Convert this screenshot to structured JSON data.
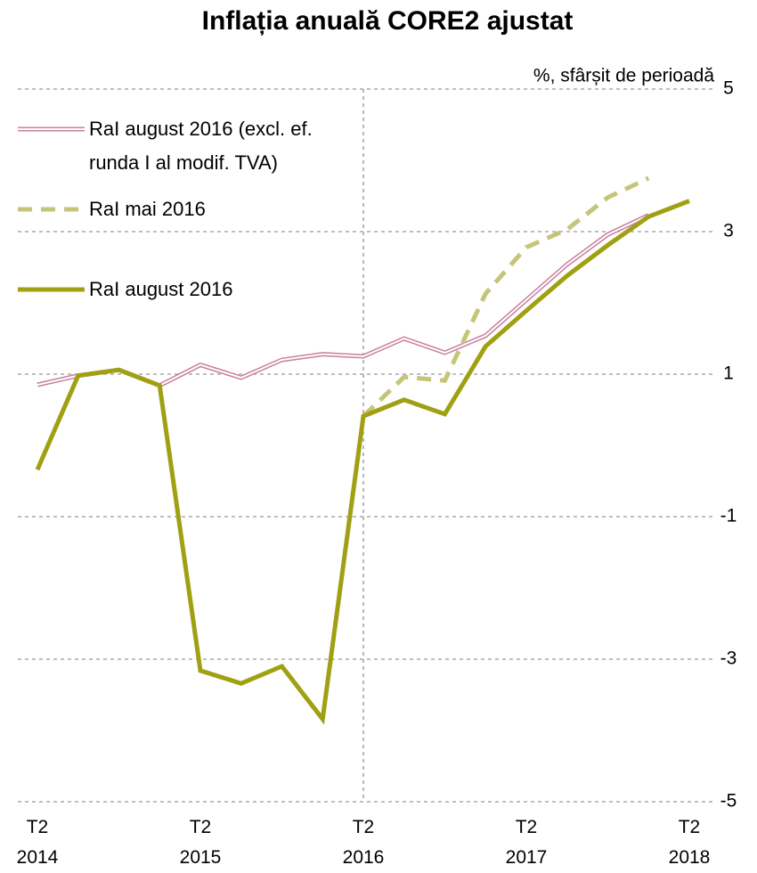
{
  "chart_data": {
    "type": "line",
    "title": "Inflația anuală CORE2 ajustat",
    "y_label": "%, sfârșit de perioadă",
    "categories": [
      "T2\n2014",
      null,
      null,
      null,
      "T2\n2015",
      null,
      null,
      null,
      "T2\n2016",
      null,
      null,
      null,
      "T2\n2017",
      null,
      null,
      null,
      "T2\n2018"
    ],
    "series": [
      {
        "name": "RaI august 2016 (excl. ef. runda I al modif. TVA)",
        "color": "#c87fa0",
        "style": "double",
        "values": [
          0.85,
          0.98,
          1.06,
          0.84,
          1.13,
          0.95,
          1.2,
          1.28,
          1.25,
          1.5,
          1.3,
          1.54,
          2.04,
          2.54,
          2.96,
          3.23,
          null
        ]
      },
      {
        "name": "RaI mai 2016",
        "color": "#c5c57a",
        "style": "dashed",
        "values": [
          null,
          null,
          null,
          null,
          null,
          null,
          null,
          null,
          0.41,
          0.96,
          0.91,
          2.13,
          2.78,
          3.03,
          3.48,
          3.75,
          null
        ]
      },
      {
        "name": "RaI august 2016",
        "color": "#a0a012",
        "style": "solid",
        "values": [
          -0.34,
          0.98,
          1.06,
          0.84,
          -3.16,
          -3.34,
          -3.1,
          -3.84,
          0.41,
          0.64,
          0.44,
          1.39,
          1.89,
          2.38,
          2.81,
          3.21,
          3.43
        ]
      }
    ],
    "ylim": [
      -5,
      5
    ],
    "yticks": [
      5,
      3,
      1,
      -1,
      -3,
      -5
    ],
    "grid": true
  }
}
